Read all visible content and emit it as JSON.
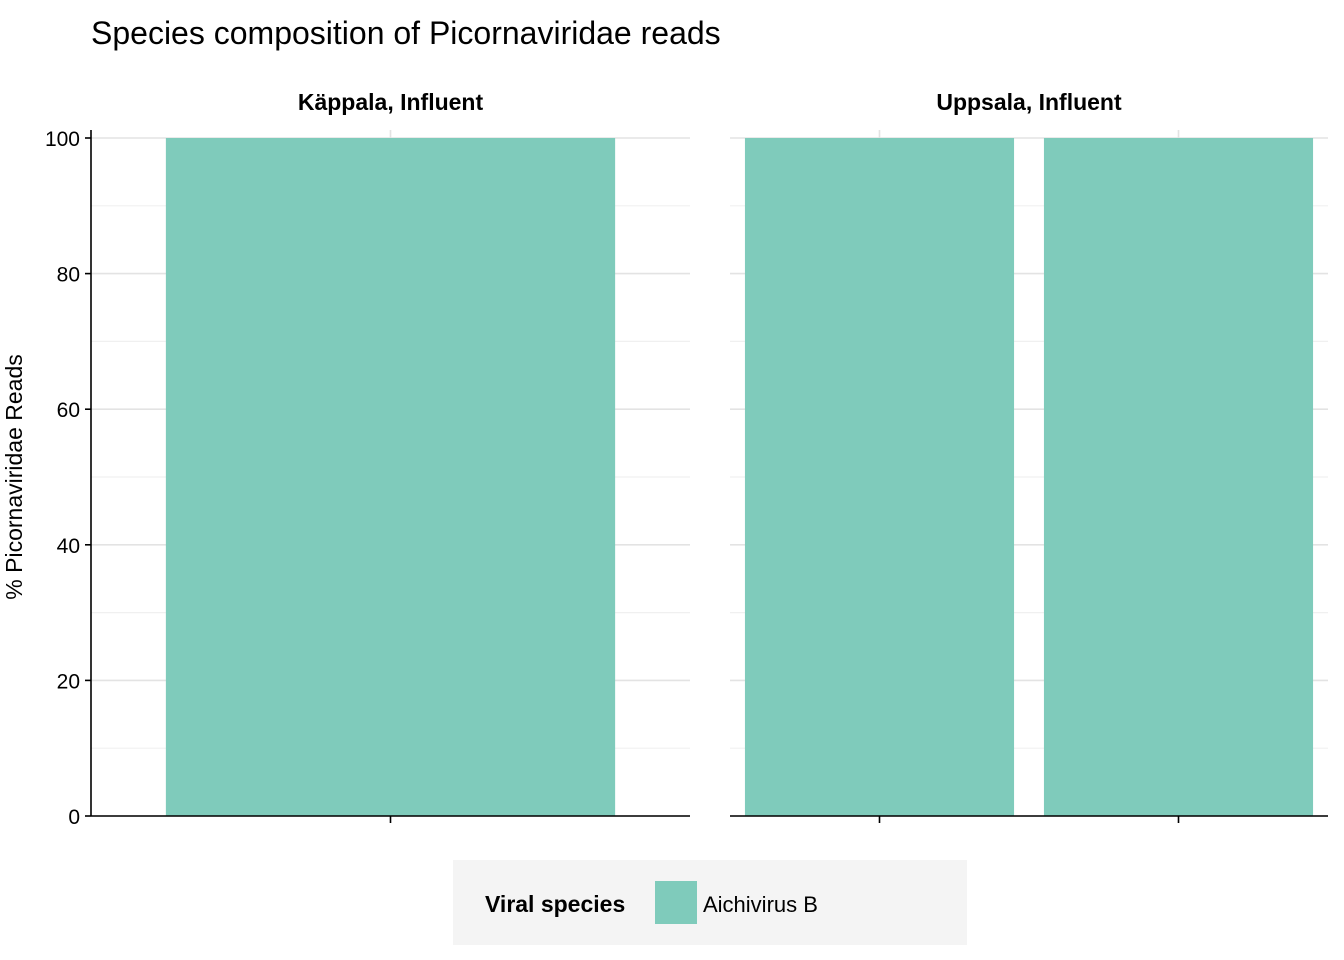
{
  "chart_data": {
    "type": "bar",
    "title": "Species composition of Picornaviridae reads",
    "xlabel": "",
    "ylabel": "% Picornaviridae Reads",
    "ylim": [
      0,
      100
    ],
    "yticks": [
      0,
      20,
      40,
      60,
      80,
      100
    ],
    "grid": true,
    "facets": [
      {
        "label": "Käppala, Influent",
        "categories": [
          ""
        ],
        "series": [
          {
            "name": "Aichivirus B",
            "values": [
              100
            ]
          }
        ]
      },
      {
        "label": "Uppsala, Influent",
        "categories": [
          "",
          ""
        ],
        "series": [
          {
            "name": "Aichivirus B",
            "values": [
              100,
              100
            ]
          }
        ]
      }
    ],
    "legend": {
      "title": "Viral species",
      "placement": "bottom",
      "entries": [
        {
          "name": "Aichivirus B",
          "color": "#7fcbbb"
        }
      ]
    },
    "colors": {
      "Aichivirus B": "#7fcbbb"
    }
  }
}
